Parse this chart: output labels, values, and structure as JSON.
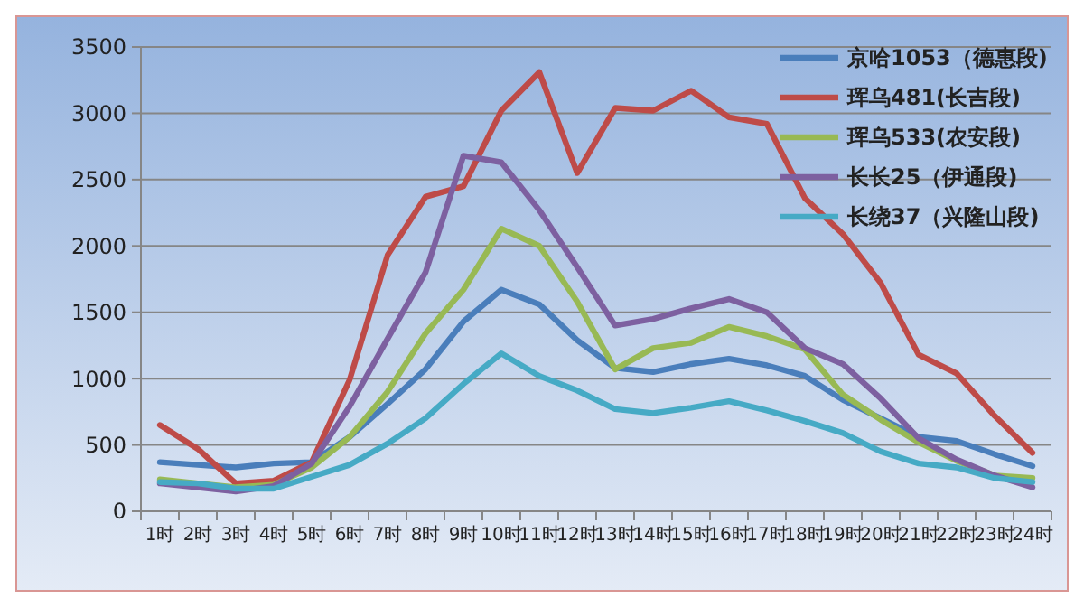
{
  "chart_data": {
    "type": "line",
    "categories": [
      "1时",
      "2时",
      "3时",
      "4时",
      "5时",
      "6时",
      "7时",
      "8时",
      "9时",
      "10时",
      "11时",
      "12时",
      "13时",
      "14时",
      "15时",
      "16时",
      "17时",
      "18时",
      "19时",
      "20时",
      "21时",
      "22时",
      "23时",
      "24时"
    ],
    "series": [
      {
        "name": "京哈1053（德惠段)",
        "color": "#4a7ebb",
        "values": [
          370,
          350,
          330,
          360,
          370,
          560,
          810,
          1070,
          1430,
          1670,
          1560,
          1290,
          1080,
          1050,
          1110,
          1150,
          1100,
          1020,
          840,
          700,
          560,
          530,
          430,
          340
        ]
      },
      {
        "name": "珲乌481(长吉段)",
        "color": "#be4b48",
        "values": [
          650,
          470,
          210,
          230,
          370,
          990,
          1930,
          2370,
          2450,
          3020,
          3310,
          2550,
          3040,
          3020,
          3170,
          2970,
          2920,
          2360,
          2090,
          1720,
          1180,
          1040,
          720,
          440
        ]
      },
      {
        "name": "珲乌533(农安段)",
        "color": "#98b954",
        "values": [
          240,
          210,
          180,
          200,
          330,
          560,
          900,
          1340,
          1670,
          2130,
          2000,
          1580,
          1070,
          1230,
          1270,
          1390,
          1320,
          1220,
          880,
          690,
          520,
          380,
          270,
          250
        ]
      },
      {
        "name": "长长25（伊通段)",
        "color": "#7d60a0",
        "values": [
          210,
          180,
          150,
          190,
          360,
          790,
          1300,
          1800,
          2680,
          2630,
          2270,
          1840,
          1400,
          1450,
          1530,
          1600,
          1500,
          1230,
          1110,
          850,
          550,
          390,
          270,
          180
        ]
      },
      {
        "name": "长绕37（兴隆山段)",
        "color": "#46aac5",
        "values": [
          220,
          210,
          170,
          170,
          260,
          350,
          510,
          700,
          960,
          1190,
          1020,
          910,
          770,
          740,
          780,
          830,
          760,
          680,
          590,
          450,
          360,
          330,
          250,
          220
        ]
      }
    ],
    "ylim": [
      0,
      3500
    ],
    "yticks": [
      0,
      500,
      1000,
      1500,
      2000,
      2500,
      3000,
      3500
    ],
    "grid": "y",
    "legend": "top right",
    "marker": "none",
    "line_style": "solid"
  }
}
